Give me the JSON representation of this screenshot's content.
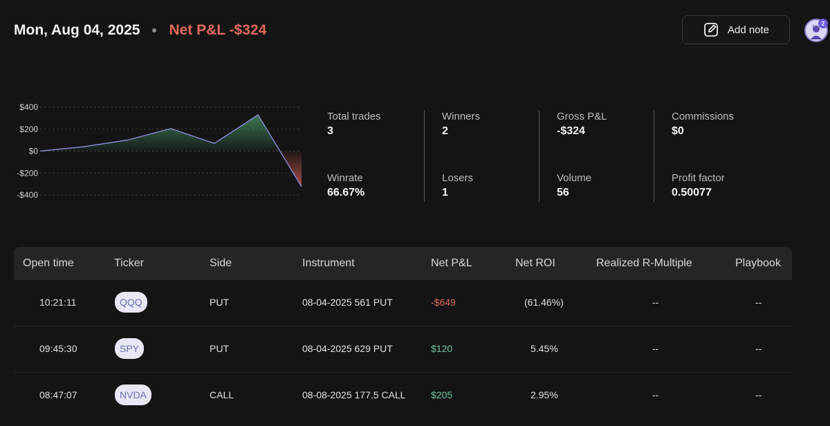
{
  "header": {
    "date": "Mon, Aug 04, 2025",
    "net_pl": "Net P&L -$324",
    "add_note_label": "Add note",
    "notification_count": "2"
  },
  "chart_data": {
    "type": "area",
    "y_ticks": [
      "$400",
      "$200",
      "$0",
      "-$200",
      "-$400"
    ],
    "ylim": [
      -400,
      400
    ],
    "values": [
      0,
      40,
      100,
      205,
      70,
      330,
      -324
    ],
    "positive_color": "#4a9a6a",
    "negative_color": "#d45a55",
    "line_color": "#8a8fd8",
    "grid": true
  },
  "stats": {
    "total_trades_label": "Total trades",
    "total_trades": "3",
    "winrate_label": "Winrate",
    "winrate": "66.67%",
    "winners_label": "Winners",
    "winners": "2",
    "losers_label": "Losers",
    "losers": "1",
    "gross_pl_label": "Gross P&L",
    "gross_pl": "-$324",
    "volume_label": "Volume",
    "volume": "56",
    "commissions_label": "Commissions",
    "commissions": "$0",
    "profit_factor_label": "Profit factor",
    "profit_factor": "0.50077"
  },
  "table": {
    "headers": [
      "Open time",
      "Ticker",
      "Side",
      "Instrument",
      "Net P&L",
      "Net ROI",
      "Realized R-Multiple",
      "Playbook"
    ],
    "rows": [
      {
        "time": "10:21:11",
        "ticker": "QQQ",
        "side": "PUT",
        "instrument": "08-04-2025 561 PUT",
        "net_pl": "-$649",
        "roi": "(61.46%)",
        "r_multiple": "--",
        "playbook": "--"
      },
      {
        "time": "09:45:30",
        "ticker": "SPY",
        "side": "PUT",
        "instrument": "08-04-2025 629 PUT",
        "net_pl": "$120",
        "roi": "5.45%",
        "r_multiple": "--",
        "playbook": "--"
      },
      {
        "time": "08:47:07",
        "ticker": "NVDA",
        "side": "CALL",
        "instrument": "08-08-2025 177.5 CALL",
        "net_pl": "$205",
        "roi": "2.95%",
        "r_multiple": "--",
        "playbook": "--"
      }
    ]
  }
}
